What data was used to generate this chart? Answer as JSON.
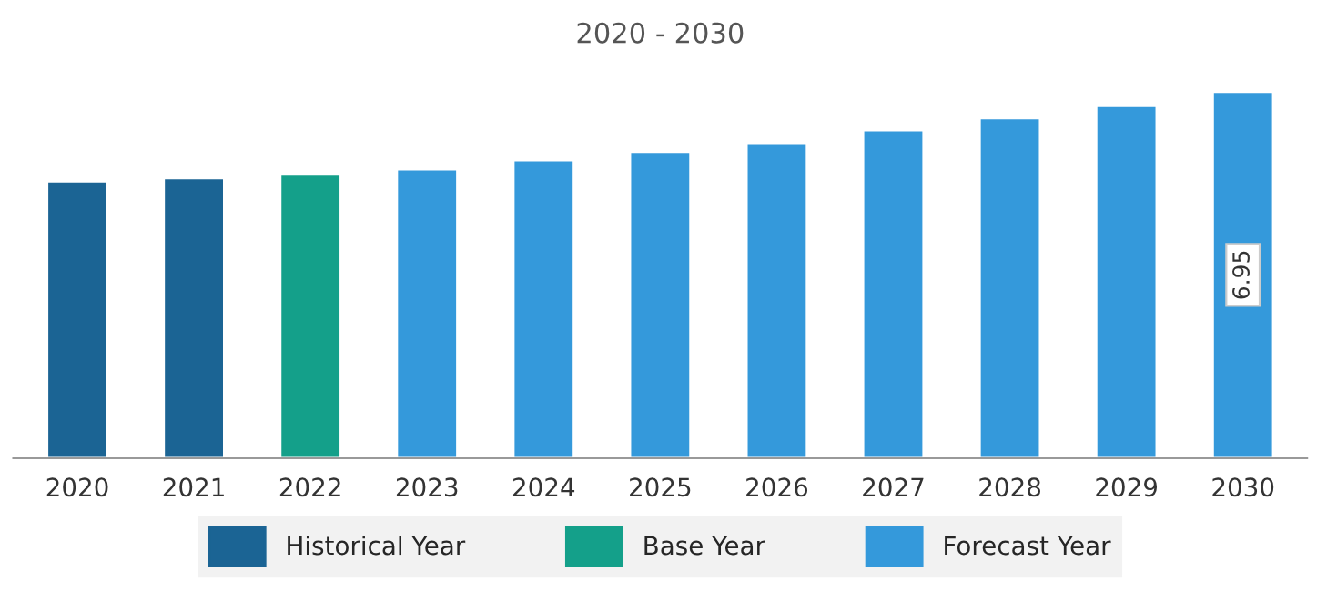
{
  "chart_data": {
    "type": "bar",
    "title": "2020 - 2030",
    "categories": [
      "2020",
      "2021",
      "2022",
      "2023",
      "2024",
      "2025",
      "2026",
      "2027",
      "2028",
      "2029",
      "2030"
    ],
    "series": [
      {
        "name": "Historical Year",
        "color": "#1b6494",
        "values": [
          5.25,
          5.31,
          null,
          null,
          null,
          null,
          null,
          null,
          null,
          null,
          null
        ]
      },
      {
        "name": "Base Year",
        "color": "#14a08a",
        "values": [
          null,
          null,
          5.38,
          null,
          null,
          null,
          null,
          null,
          null,
          null,
          null
        ]
      },
      {
        "name": "Forecast Year",
        "color": "#3499db",
        "values": [
          null,
          null,
          null,
          5.48,
          5.65,
          5.81,
          5.98,
          6.22,
          6.45,
          6.68,
          6.95
        ],
        "value_labels": [
          null,
          null,
          null,
          null,
          null,
          null,
          null,
          null,
          null,
          null,
          "6.95"
        ]
      }
    ],
    "legend": "bottom",
    "tick_labels": "x"
  }
}
